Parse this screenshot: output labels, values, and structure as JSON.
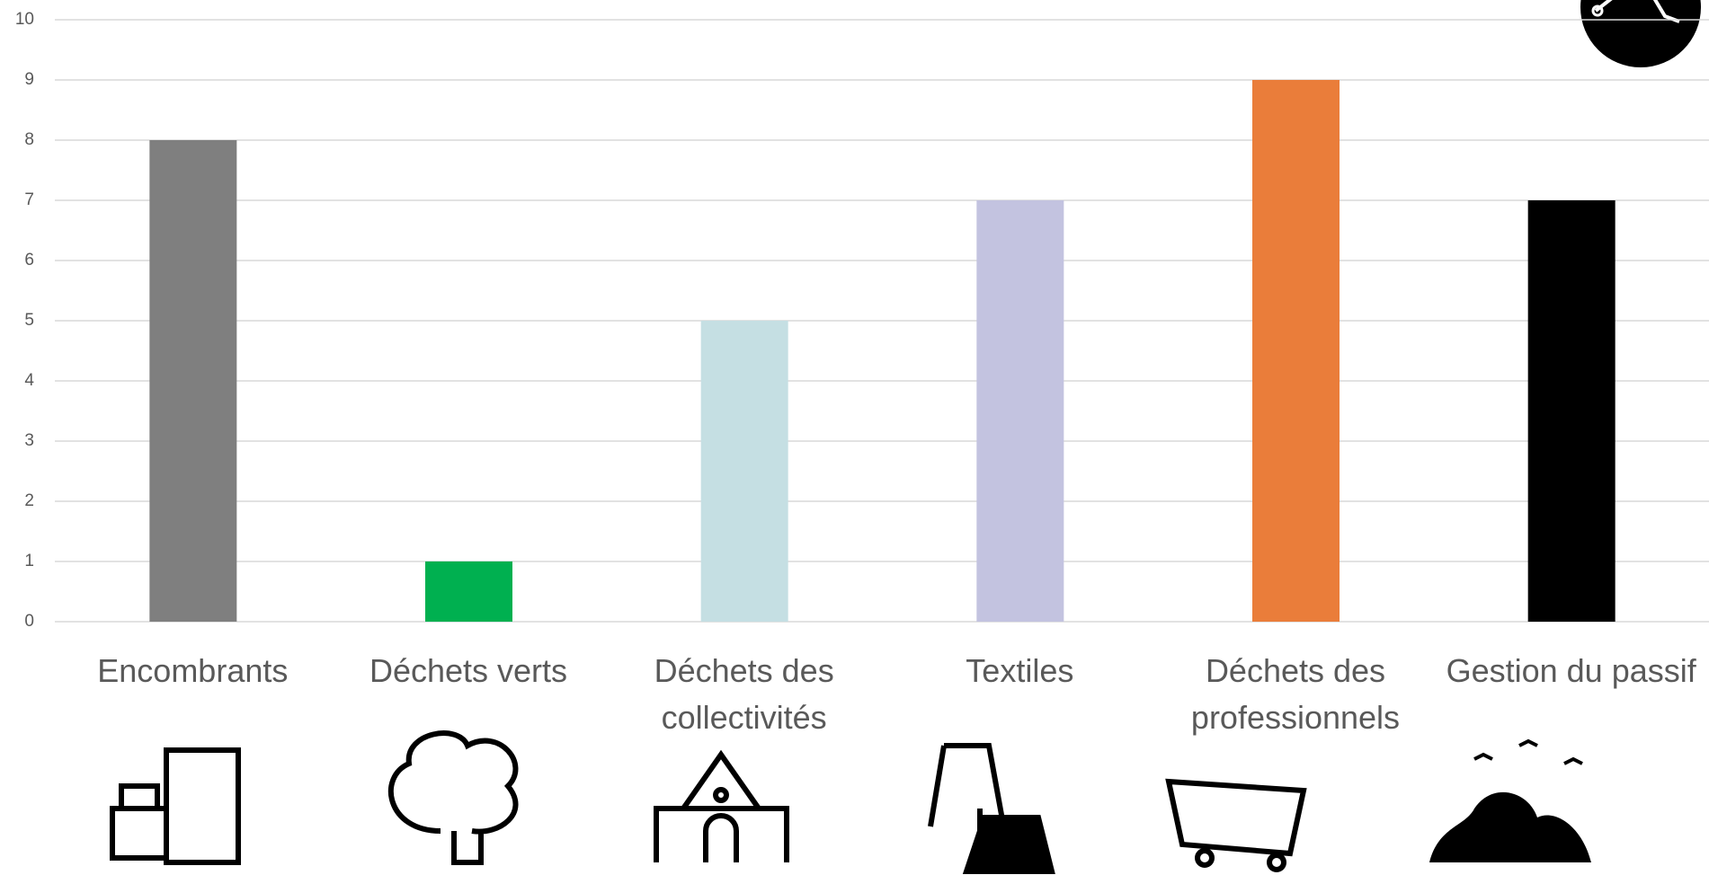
{
  "chart_data": {
    "type": "bar",
    "categories": [
      "Encombrants",
      "Déchets verts",
      "Déchets des collectivités",
      "Textiles",
      "Déchets des professionnels",
      "Gestion du passif"
    ],
    "values": [
      8,
      1,
      5,
      7,
      9,
      7
    ],
    "colors": [
      "#7f7f7f",
      "#00b050",
      "#c5dfe3",
      "#c3c3e0",
      "#ea7d3a",
      "#000000"
    ],
    "ylim": [
      0,
      10
    ],
    "yticks": [
      0,
      1,
      2,
      3,
      4,
      5,
      6,
      7,
      8,
      9,
      10
    ],
    "grid": true
  }
}
